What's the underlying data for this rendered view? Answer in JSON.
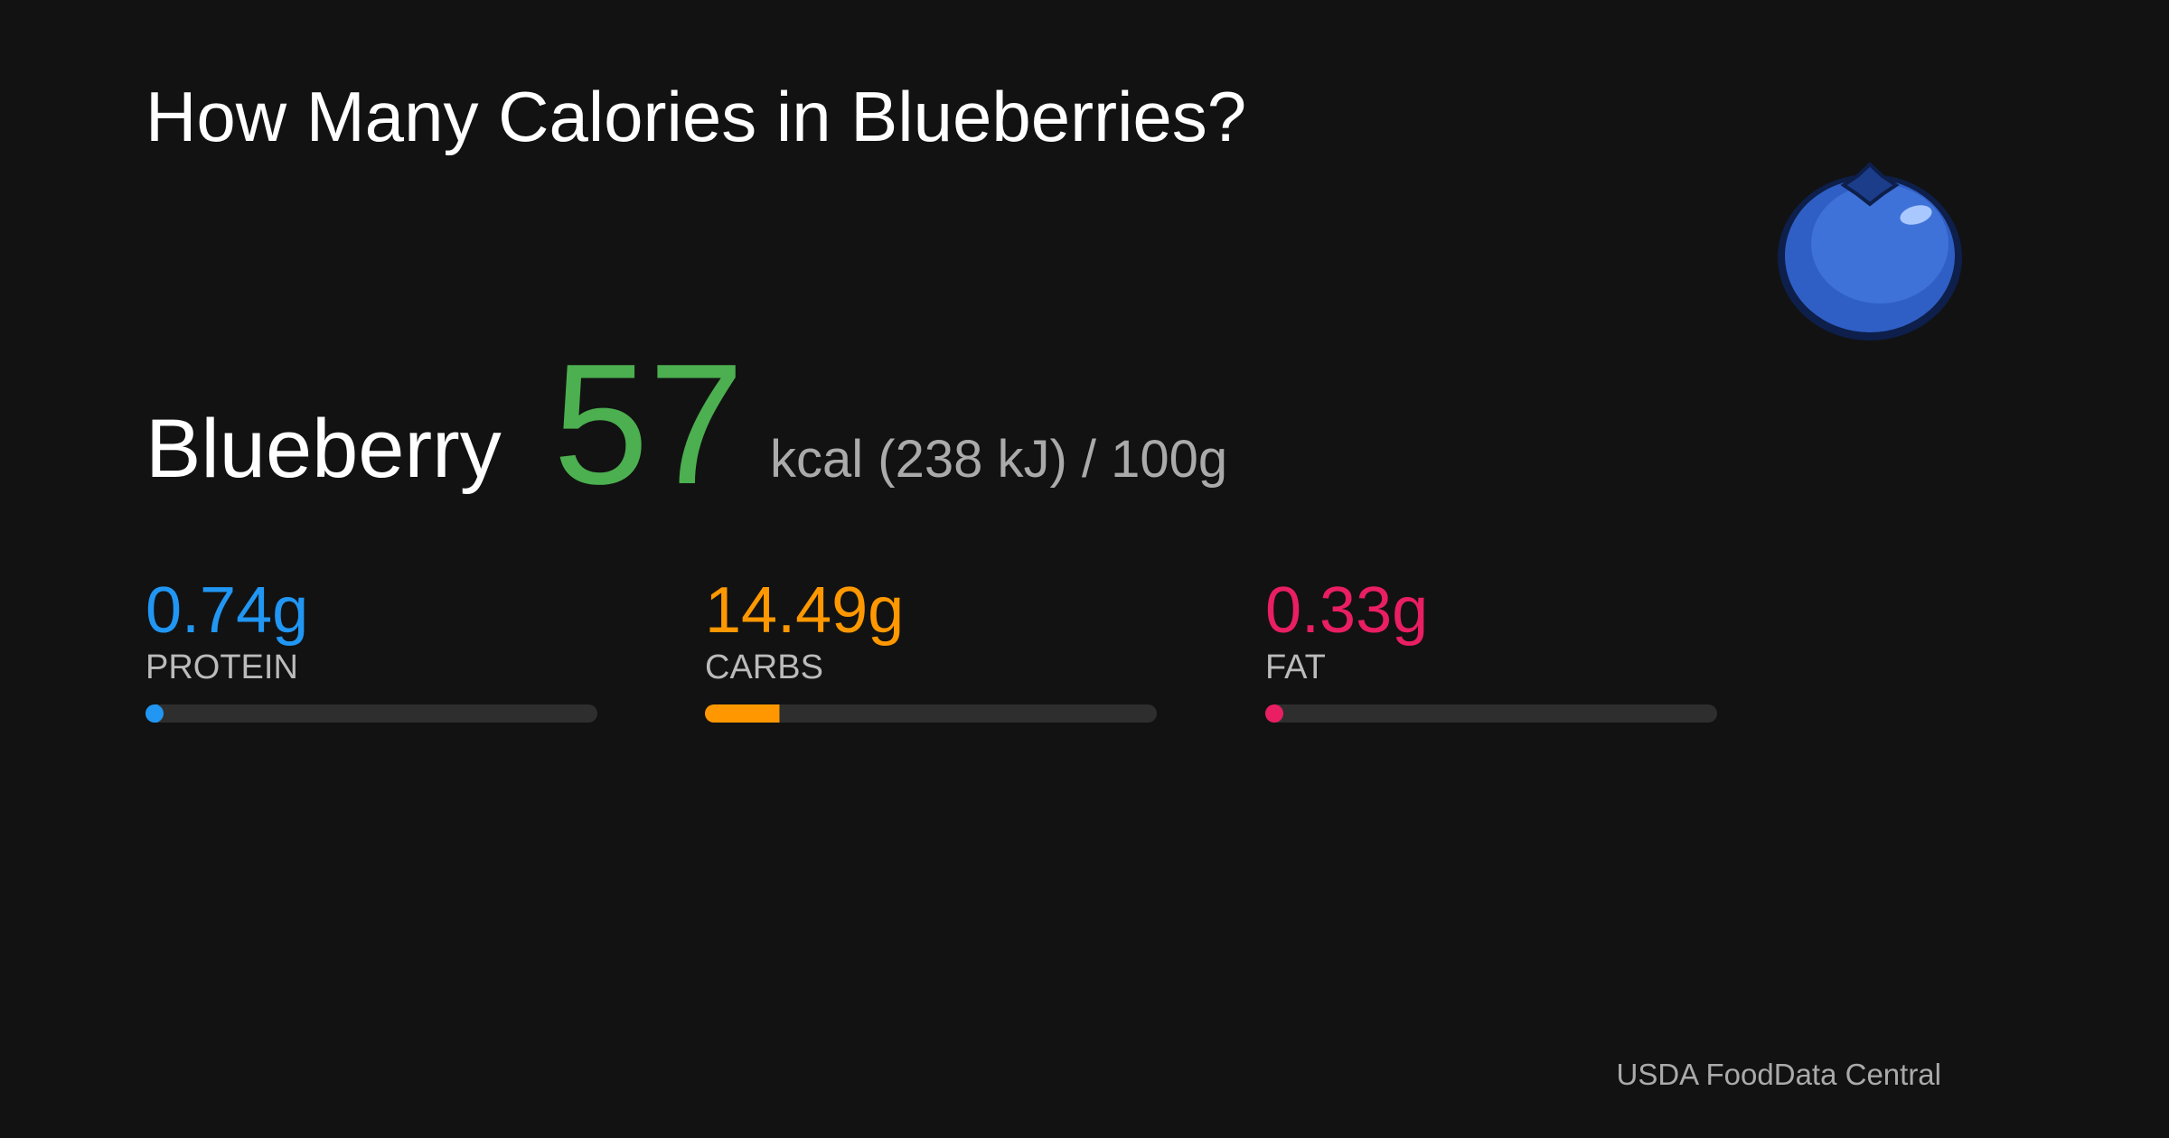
{
  "title": "How Many Calories in Blueberries?",
  "food": "Blueberry",
  "calories": 57,
  "calories_unit": "kcal (238 kJ) / 100g",
  "macros": [
    {
      "value": 0.74,
      "value_label": "0.74g",
      "label": "PROTEIN",
      "color": "#2196f3"
    },
    {
      "value": 14.49,
      "value_label": "14.49g",
      "label": "CARBS",
      "color": "#ff9800"
    },
    {
      "value": 0.33,
      "value_label": "0.33g",
      "label": "FAT",
      "color": "#e91e63"
    }
  ],
  "xlim": [
    0,
    100
  ],
  "source": "USDA FoodData Central"
}
